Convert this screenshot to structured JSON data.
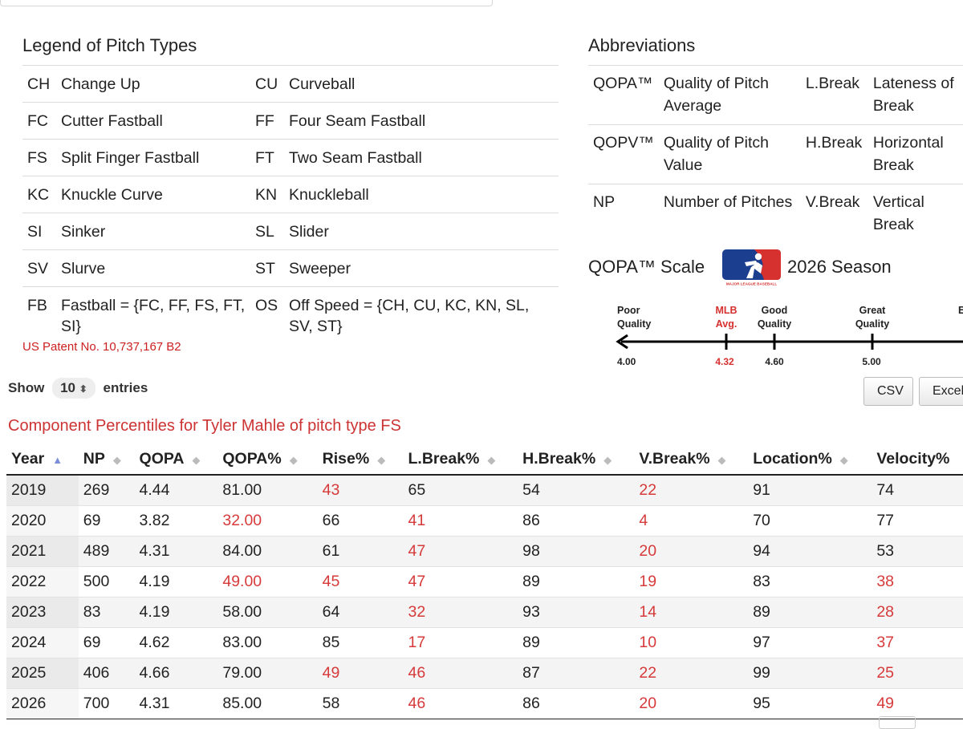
{
  "legend": {
    "title": "Legend of Pitch Types",
    "rows": [
      {
        "c1": "CH",
        "n1": "Change Up",
        "c2": "CU",
        "n2": "Curveball"
      },
      {
        "c1": "FC",
        "n1": "Cutter Fastball",
        "c2": "FF",
        "n2": "Four Seam Fastball"
      },
      {
        "c1": "FS",
        "n1": "Split Finger Fastball",
        "c2": "FT",
        "n2": "Two Seam Fastball"
      },
      {
        "c1": "KC",
        "n1": "Knuckle Curve",
        "c2": "KN",
        "n2": "Knuckleball"
      },
      {
        "c1": "SI",
        "n1": "Sinker",
        "c2": "SL",
        "n2": "Slider"
      },
      {
        "c1": "SV",
        "n1": "Slurve",
        "c2": "ST",
        "n2": "Sweeper"
      },
      {
        "c1": "FB",
        "n1": "Fastball = {FC, FF, FS, FT, SI}",
        "c2": "OS",
        "n2": "Off Speed = {CH, CU, KC, KN, SL, SV, ST}"
      }
    ]
  },
  "patent": "US Patent No. 10,737,167 B2",
  "abbreviations": {
    "title": "Abbreviations",
    "rows": [
      {
        "a1": "QOPA™",
        "d1": "Quality of Pitch Average",
        "a2": "L.Break",
        "d2": "Lateness of Break"
      },
      {
        "a1": "QOPV™",
        "d1": "Quality of Pitch Value",
        "a2": "H.Break",
        "d2": "Horizontal Break"
      },
      {
        "a1": "NP",
        "d1": "Number of Pitches",
        "a2": "V.Break",
        "d2": "Vertical Break"
      }
    ]
  },
  "scale": {
    "title": "QOPA™ Scale",
    "season": "2026 Season",
    "logo_text": "MAJOR LEAGUE BASEBALL",
    "labels": {
      "poor": [
        "Poor",
        "Quality"
      ],
      "mlb": [
        "MLB",
        "Avg."
      ],
      "good": [
        "Good",
        "Quality"
      ],
      "great": [
        "Great",
        "Quality"
      ],
      "cut": "E"
    },
    "values": {
      "poor": "4.00",
      "mlb": "4.32",
      "good": "4.60",
      "great": "5.00"
    },
    "colors": {
      "mlb_red": "#d6302f",
      "mlb_blue": "#1b3e8f"
    }
  },
  "controls": {
    "show_label": "Show",
    "entries_value": "10",
    "entries_label": "entries",
    "csv": "CSV",
    "excel": "Excel"
  },
  "table": {
    "caption": "Component Percentiles for Tyler Mahle of pitch type FS",
    "headers": [
      "Year",
      "NP",
      "QOPA",
      "QOPA%",
      "Rise%",
      "L.Break%",
      "H.Break%",
      "V.Break%",
      "Location%",
      "Velocity%"
    ],
    "rows": [
      [
        "2019",
        "269",
        "4.44",
        "81.00",
        "43",
        "65",
        "54",
        "22",
        "91",
        "74"
      ],
      [
        "2020",
        "69",
        "3.82",
        "32.00",
        "66",
        "41",
        "86",
        "4",
        "70",
        "77"
      ],
      [
        "2021",
        "489",
        "4.31",
        "84.00",
        "61",
        "47",
        "98",
        "20",
        "94",
        "53"
      ],
      [
        "2022",
        "500",
        "4.19",
        "49.00",
        "45",
        "47",
        "89",
        "19",
        "83",
        "38"
      ],
      [
        "2023",
        "83",
        "4.19",
        "58.00",
        "64",
        "32",
        "93",
        "14",
        "89",
        "28"
      ],
      [
        "2024",
        "69",
        "4.62",
        "83.00",
        "85",
        "17",
        "89",
        "10",
        "97",
        "37"
      ],
      [
        "2025",
        "406",
        "4.66",
        "79.00",
        "49",
        "46",
        "87",
        "22",
        "99",
        "25"
      ],
      [
        "2026",
        "700",
        "4.31",
        "85.00",
        "58",
        "46",
        "86",
        "20",
        "95",
        "49"
      ]
    ],
    "highlight_color": "#d63a3a"
  }
}
